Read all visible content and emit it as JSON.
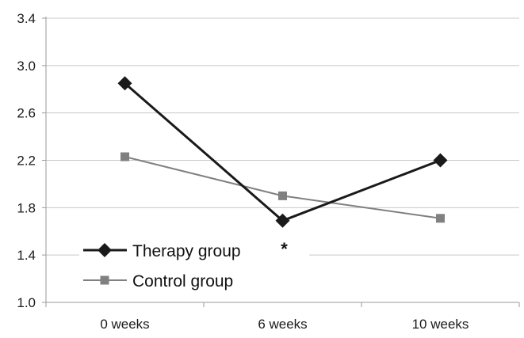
{
  "chart_data": {
    "type": "line",
    "categories": [
      "0 weeks",
      "6 weeks",
      "10 weeks"
    ],
    "series": [
      {
        "name": "Therapy group",
        "values": [
          2.85,
          1.69,
          2.2
        ],
        "color": "#1a1a1a",
        "marker": "diamond"
      },
      {
        "name": "Control group",
        "values": [
          2.23,
          1.9,
          1.71
        ],
        "color": "#808080",
        "marker": "square"
      }
    ],
    "ylim": [
      1.0,
      3.4
    ],
    "yticks": [
      "1.0",
      "1.4",
      "1.8",
      "2.2",
      "2.6",
      "3.0",
      "3.4"
    ],
    "grid": "horizontal",
    "legend_position": "bottom-left",
    "annotations": [
      {
        "text": "*",
        "category": "6 weeks"
      }
    ]
  }
}
